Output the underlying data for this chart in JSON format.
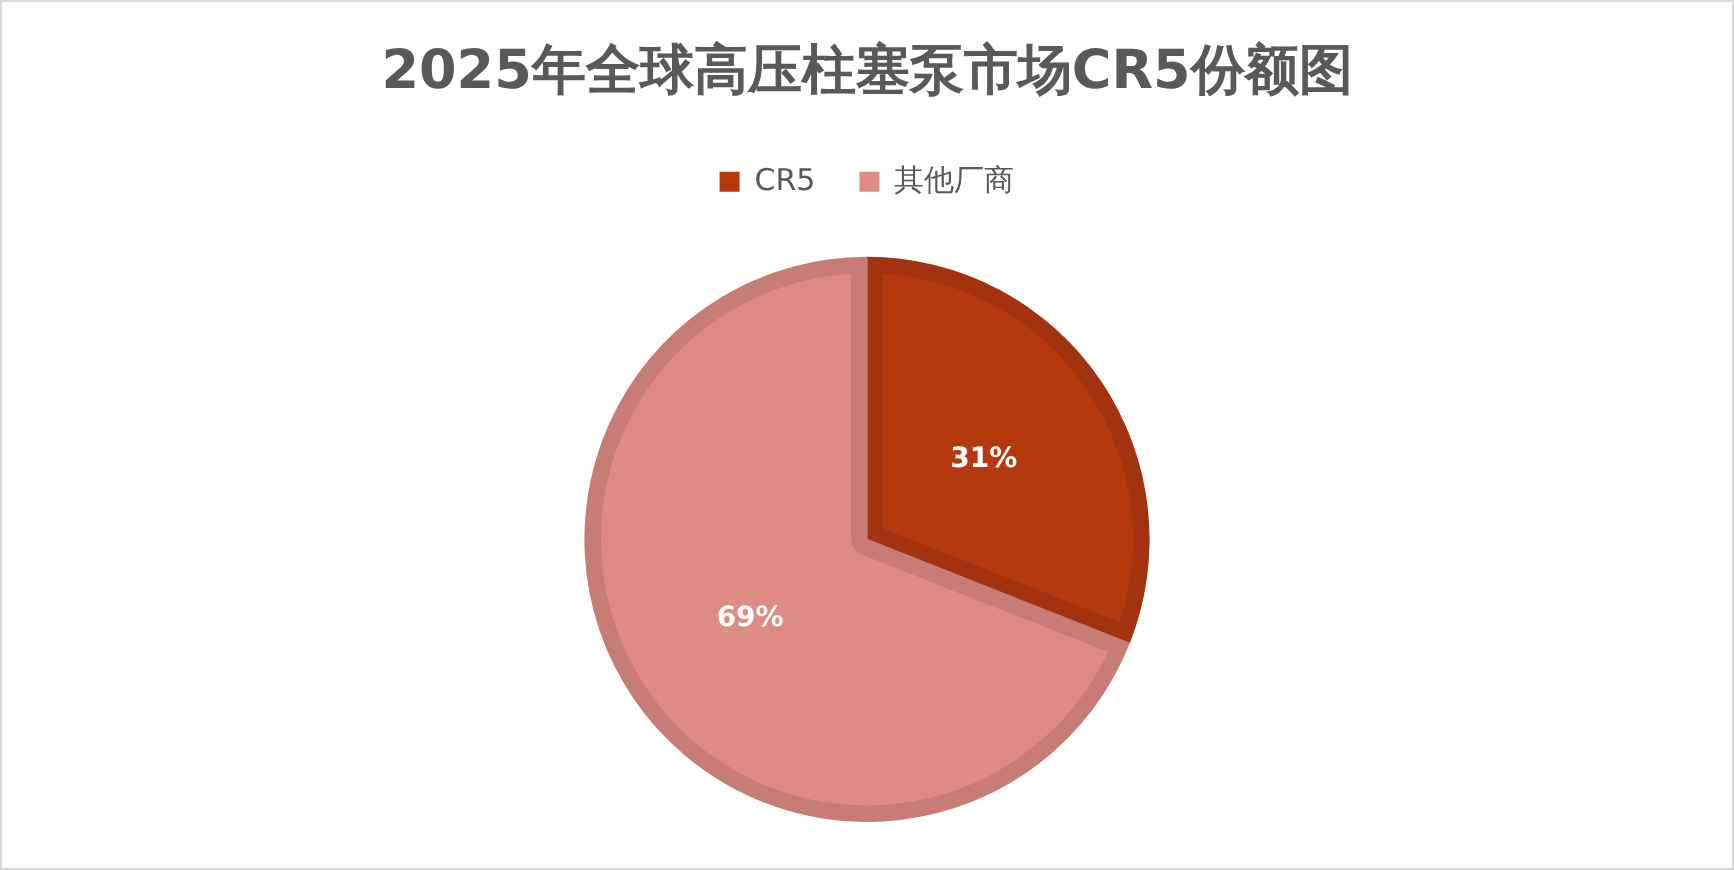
{
  "chart_data": {
    "type": "pie",
    "title": "2025年全球高压柱塞泵市场CR5份额图",
    "categories": [
      "CR5",
      "其他厂商"
    ],
    "values": [
      31,
      69
    ],
    "colors": [
      "#b5390f",
      "#dd8b83"
    ],
    "value_labels": [
      "31%",
      "69%"
    ],
    "legend": "top"
  }
}
